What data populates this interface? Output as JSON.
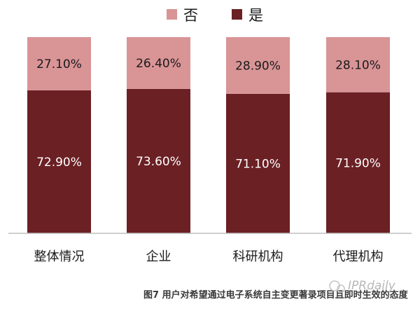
{
  "chart_data": {
    "type": "bar",
    "stacked": true,
    "categories": [
      "整体情况",
      "企业",
      "科研机构",
      "代理机构"
    ],
    "series": [
      {
        "name": "是",
        "values": [
          72.9,
          73.6,
          71.1,
          71.9
        ],
        "labels": [
          "72.90%",
          "73.60%",
          "71.10%",
          "71.90%"
        ],
        "color": "#6b2024"
      },
      {
        "name": "否",
        "values": [
          27.1,
          26.4,
          28.9,
          28.1
        ],
        "labels": [
          "27.10%",
          "26.40%",
          "28.90%",
          "28.10%"
        ],
        "color": "#d99496"
      }
    ],
    "title": "",
    "caption": "图7 用户对希望通过电子系统自主变更著录项目且即时生效的态度",
    "xlabel": "",
    "ylabel": "",
    "ylim": [
      0,
      100
    ],
    "grid": false,
    "legend": "top",
    "legend_order": [
      "否",
      "是"
    ]
  },
  "watermark": "IPRdaily"
}
